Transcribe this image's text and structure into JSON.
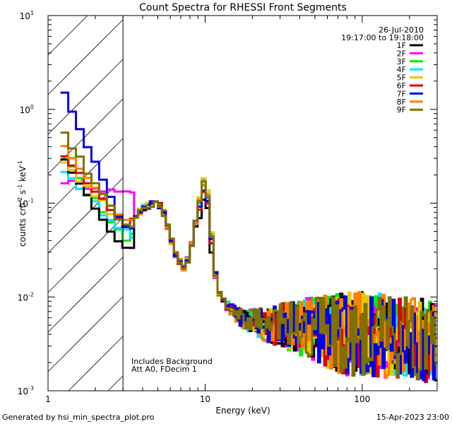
{
  "chart_data": {
    "type": "line",
    "title": "Count Spectra for RHESSI Front Segments",
    "xlabel": "Energy (keV)",
    "ylabel": "counts cm",
    "ylabel_pieces": [
      "counts cm",
      "-2",
      " s",
      "-1",
      " keV",
      "-1"
    ],
    "xscale": "log",
    "yscale": "log",
    "xlim": [
      1,
      300
    ],
    "ylim": [
      0.001,
      10
    ],
    "x_ticks": [
      {
        "value": 1,
        "label": "1"
      },
      {
        "value": 10,
        "label": "10"
      },
      {
        "value": 100,
        "label": "100"
      }
    ],
    "y_ticks": [
      {
        "value": 0.001,
        "base": "10",
        "exp": "-3"
      },
      {
        "value": 0.01,
        "base": "10",
        "exp": "-2"
      },
      {
        "value": 0.1,
        "base": "10",
        "exp": "-1"
      },
      {
        "value": 1,
        "base": "10",
        "exp": "0"
      },
      {
        "value": 10,
        "base": "10",
        "exp": "1"
      }
    ],
    "excluded_region": {
      "x_min": 1,
      "x_max": 3,
      "style": "hatched"
    },
    "date_label": "26-Jul-2010",
    "time_label": "19:17:00 to 19:18:00",
    "annotations": [
      "Includes Background",
      "Att A0, FDecim 1"
    ],
    "legend_position": "top-right",
    "series": [
      {
        "name": "1F",
        "color": "#000000"
      },
      {
        "name": "2F",
        "color": "#ff00ff"
      },
      {
        "name": "3F",
        "color": "#00ee00"
      },
      {
        "name": "4F",
        "color": "#00e5ff"
      },
      {
        "name": "5F",
        "color": "#e6c800"
      },
      {
        "name": "6F",
        "color": "#dd0000"
      },
      {
        "name": "7F",
        "color": "#0000ee"
      },
      {
        "name": "8F",
        "color": "#ff7f00"
      },
      {
        "name": "9F",
        "color": "#807000"
      }
    ],
    "base_profile": {
      "x": [
        1.2,
        1.33,
        1.5,
        1.67,
        1.83,
        2.0,
        2.17,
        2.33,
        2.5,
        2.67,
        2.85,
        3.0,
        3.2,
        3.5,
        3.8,
        4.1,
        4.4,
        4.7,
        5.0,
        5.3,
        5.6,
        6.0,
        6.4,
        6.8,
        7.2,
        7.6,
        8.0,
        8.5,
        9.0,
        9.5,
        10.0,
        10.5,
        11.0,
        11.5,
        12.0,
        13.0,
        14.0,
        15.0,
        17.0,
        20.0,
        25.0,
        30.0,
        40.0,
        50.0,
        70.0,
        100.0,
        150.0,
        200.0,
        250.0,
        300.0
      ],
      "y": [
        0.2,
        0.18,
        0.15,
        0.12,
        0.1,
        0.09,
        0.08,
        0.07,
        0.065,
        0.06,
        0.058,
        0.058,
        0.06,
        0.07,
        0.08,
        0.09,
        0.095,
        0.1,
        0.1,
        0.09,
        0.07,
        0.045,
        0.03,
        0.025,
        0.02,
        0.022,
        0.03,
        0.05,
        0.08,
        0.12,
        0.18,
        0.1,
        0.04,
        0.02,
        0.012,
        0.009,
        0.008,
        0.007,
        0.006,
        0.0055,
        0.005,
        0.005,
        0.0048,
        0.0045,
        0.0042,
        0.004,
        0.0038,
        0.0036,
        0.0035,
        0.0034
      ]
    },
    "series_profiles": {
      "1F": {
        "start": 0.35,
        "dip": 0.033,
        "peak": 0.14
      },
      "2F": {
        "start": 0.17,
        "dip": 0.13,
        "peak": 0.2
      },
      "3F": {
        "start": 0.34,
        "dip": 0.045,
        "peak": 0.2
      },
      "4F": {
        "start": 0.24,
        "dip": 0.048,
        "peak": 0.18
      },
      "5F": {
        "start": 0.3,
        "dip": 0.06,
        "peak": 0.22
      },
      "6F": {
        "start": 0.35,
        "dip": 0.06,
        "peak": 0.16
      },
      "7F": {
        "start": 1.85,
        "dip": 0.055,
        "peak": 0.17
      },
      "8F": {
        "start": 0.45,
        "dip": 0.065,
        "peak": 0.2
      },
      "9F": {
        "start": 0.64,
        "dip": 0.055,
        "peak": 0.19
      }
    }
  },
  "footer": {
    "left": "Generated by hsi_min_spectra_plot.pro",
    "right": "15-Apr-2023 23:00"
  }
}
